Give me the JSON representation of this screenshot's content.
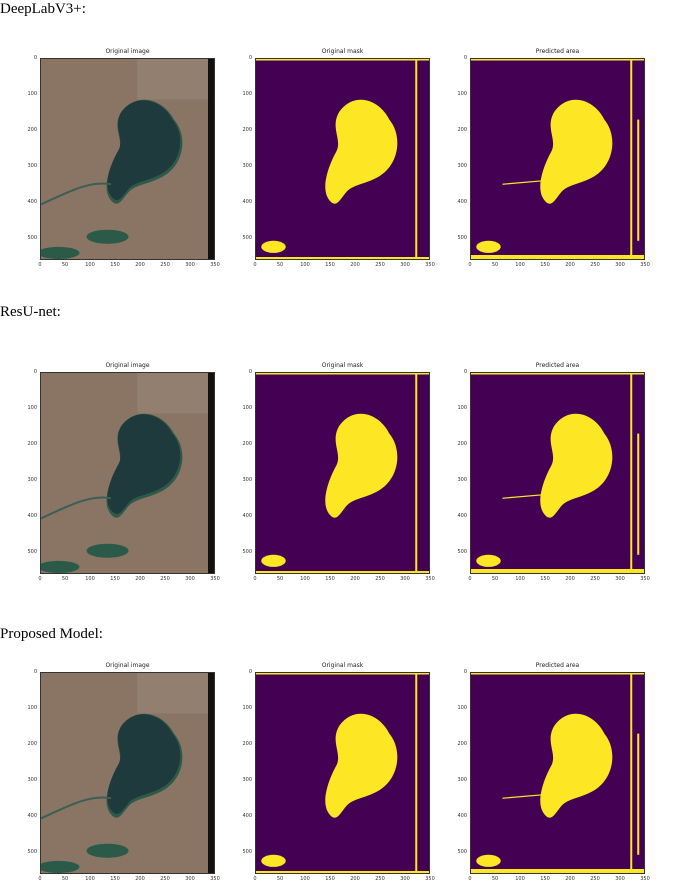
{
  "sections": [
    {
      "label": "DeepLabV3+:",
      "panels": [
        {
          "title": "Original image",
          "kind": "satellite"
        },
        {
          "title": "Original mask",
          "kind": "mask"
        },
        {
          "title": "Predicted area",
          "kind": "prediction"
        }
      ]
    },
    {
      "label": "ResU-net:",
      "panels": [
        {
          "title": "Original image",
          "kind": "satellite"
        },
        {
          "title": "Original mask",
          "kind": "mask"
        },
        {
          "title": "Predicted area",
          "kind": "prediction"
        }
      ]
    },
    {
      "label": "Proposed Model:",
      "panels": [
        {
          "title": "Original image",
          "kind": "satellite"
        },
        {
          "title": "Original mask",
          "kind": "mask"
        },
        {
          "title": "Predicted area",
          "kind": "prediction"
        }
      ]
    }
  ],
  "axes": {
    "y_ticks": [
      "0",
      "100",
      "200",
      "300",
      "400",
      "500"
    ],
    "x_ticks": [
      "0",
      "50",
      "100",
      "150",
      "200",
      "250",
      "300",
      "350"
    ]
  },
  "colors": {
    "mask_background": "#440154",
    "mask_foreground": "#fde725",
    "terrain": "#8a7565",
    "water": "#1f3a3d"
  }
}
